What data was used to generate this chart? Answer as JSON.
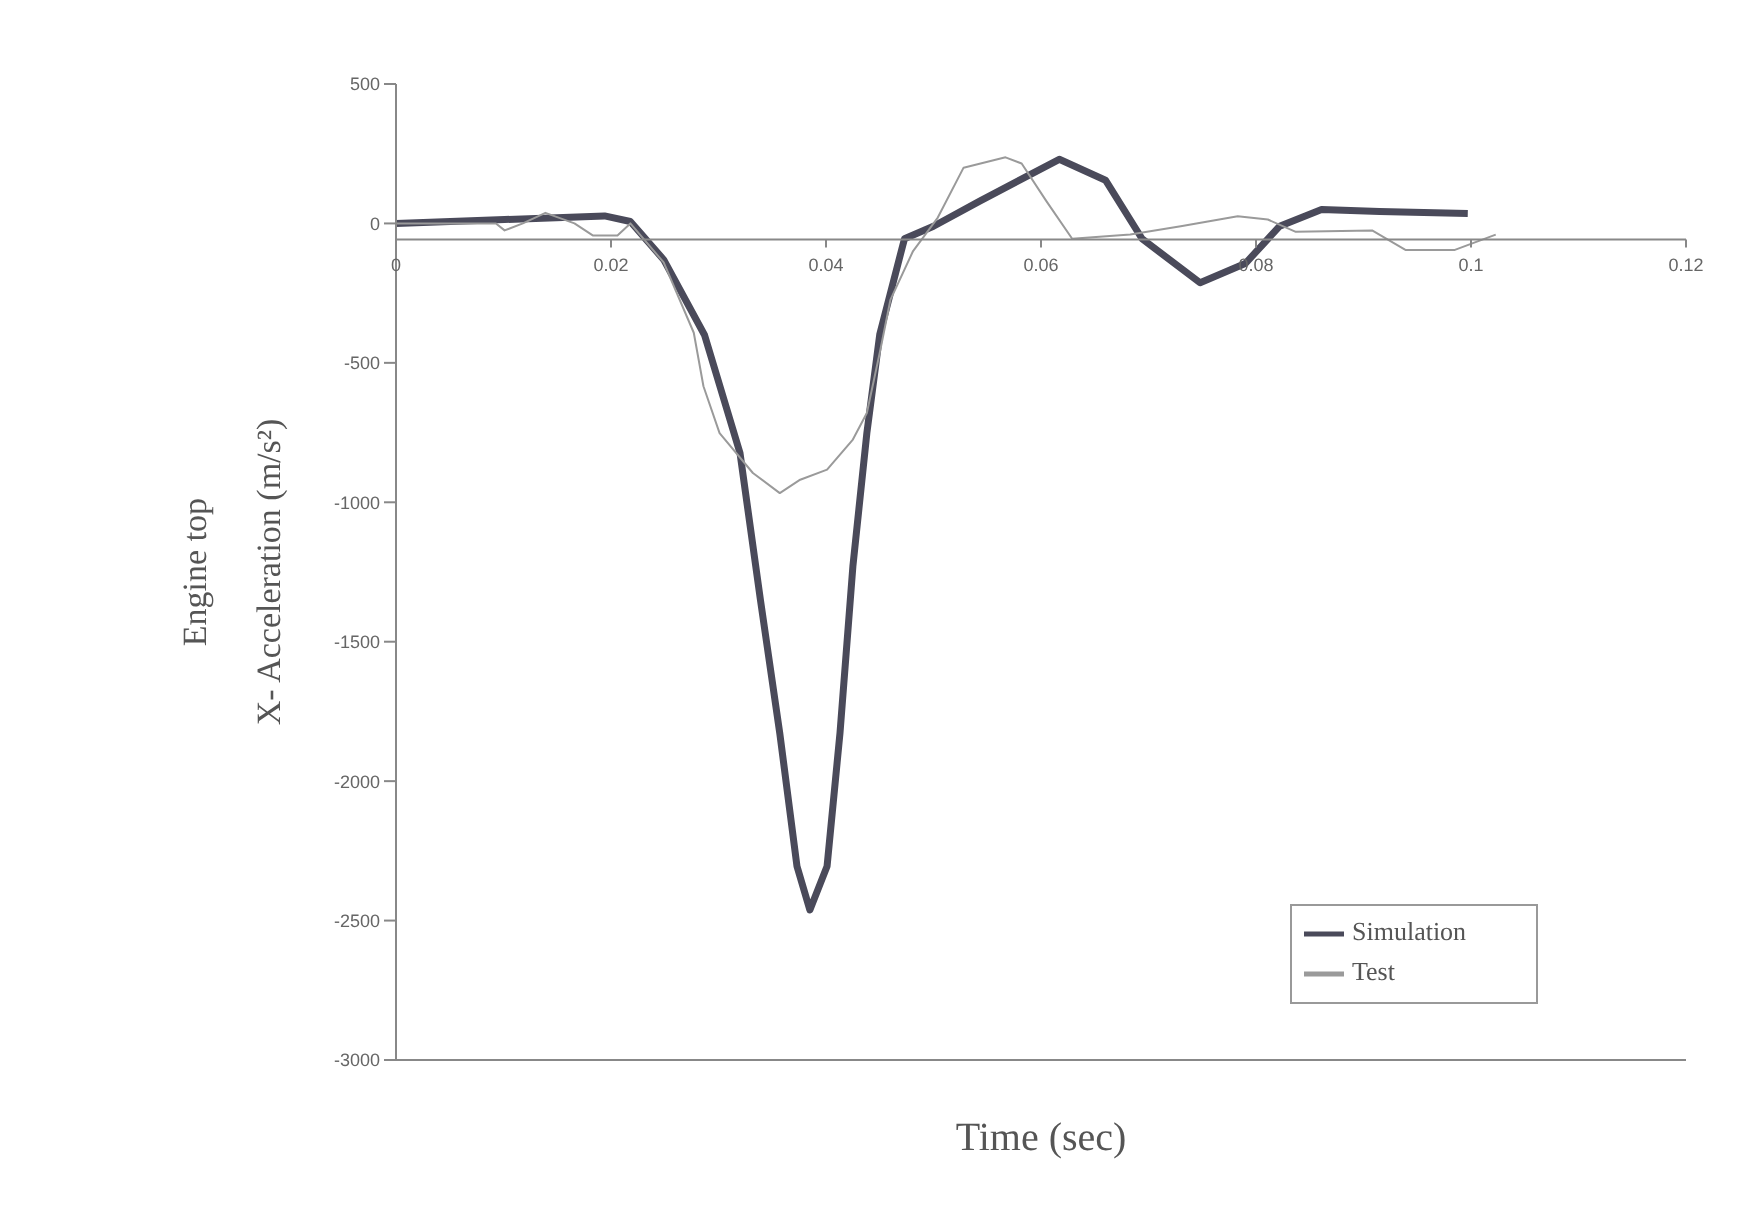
{
  "chart_data": {
    "type": "line",
    "xlabel": "Time (sec)",
    "ylabel": "Engine top\nX- Acceleration (m/s²)",
    "xlim": [
      0,
      0.12
    ],
    "xticks": [
      0,
      0.02,
      0.04,
      0.06,
      0.08,
      0.1,
      0.12
    ],
    "ylim": [
      -3000,
      500
    ],
    "yticks": [
      -3000,
      -2500,
      -2000,
      -1500,
      -1000,
      -500,
      0,
      500
    ],
    "grid": false,
    "legend": "bottom right",
    "marker": "none",
    "series": [
      {
        "name": "Simulation",
        "color": "#4a4a5a",
        "x": [
          0,
          0.0101,
          0.0194,
          0.0218,
          0.0249,
          0.0287,
          0.032,
          0.0339,
          0.0357,
          0.0373,
          0.0385,
          0.0401,
          0.0413,
          0.0425,
          0.0438,
          0.045,
          0.0473,
          0.05,
          0.0543,
          0.0617,
          0.066,
          0.0694,
          0.0748,
          0.079,
          0.0822,
          0.0861,
          0.0915,
          0.0997
        ],
        "values": [
          0,
          14,
          27,
          7,
          -130,
          -400,
          -823,
          -1350,
          -1828,
          -2305,
          -2462,
          -2305,
          -1828,
          -1230,
          -752,
          -398,
          -55,
          -10,
          80,
          230,
          155,
          -55,
          -213,
          -144,
          -10,
          50,
          43,
          36
        ]
      },
      {
        "name": "Test",
        "color": "#9a9a9a",
        "x": [
          0,
          0.0093,
          0.0101,
          0.0118,
          0.0139,
          0.0166,
          0.0183,
          0.0206,
          0.0218,
          0.0249,
          0.0277,
          0.0286,
          0.0301,
          0.0332,
          0.0357,
          0.0376,
          0.0401,
          0.0425,
          0.0438,
          0.045,
          0.046,
          0.0481,
          0.0504,
          0.0528,
          0.0567,
          0.0582,
          0.0605,
          0.0629,
          0.0683,
          0.073,
          0.0783,
          0.0811,
          0.0837,
          0.0908,
          0.0939,
          0.0985,
          0.1023
        ],
        "values": [
          0,
          0,
          -25,
          0,
          38,
          0,
          -43,
          -43,
          0,
          -140,
          -392,
          -584,
          -752,
          -895,
          -967,
          -919,
          -883,
          -775,
          -680,
          -464,
          -273,
          -99,
          21,
          200,
          237,
          215,
          80,
          -55,
          -40,
          -10,
          26,
          14,
          -30,
          -25,
          -95,
          -95,
          -40
        ]
      }
    ]
  }
}
